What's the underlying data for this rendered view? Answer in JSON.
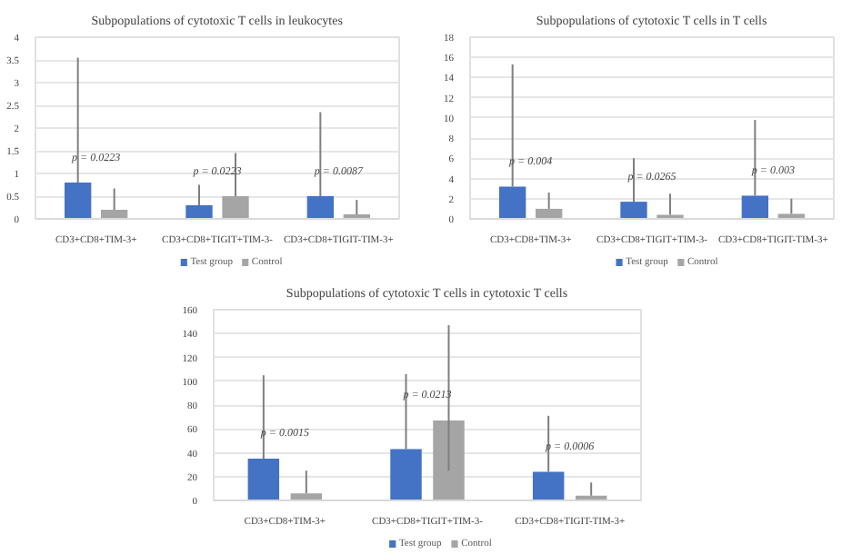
{
  "chart_data": [
    {
      "type": "bar",
      "title": "Subpopulations of cytotoxic T cells in leukocytes",
      "categories": [
        "CD3+CD8+TIM-3+",
        "CD3+CD8+TIGIT+TIM-3-",
        "CD3+CD8+TIGIT-TIM-3+"
      ],
      "series": [
        {
          "name": "Test group",
          "color": "#4472c4",
          "values": [
            0.8,
            0.3,
            0.5
          ],
          "errors": [
            [
              0.8,
              3.55
            ],
            [
              0.3,
              0.75
            ],
            [
              0.5,
              2.35
            ]
          ]
        },
        {
          "name": "Control",
          "color": "#a5a5a5",
          "values": [
            0.2,
            0.5,
            0.1
          ],
          "errors": [
            [
              0.2,
              0.67
            ],
            [
              0.5,
              1.45
            ],
            [
              0.1,
              0.42
            ]
          ]
        }
      ],
      "ylim": [
        0,
        4
      ],
      "yticks": [
        0,
        0.5,
        1,
        1.5,
        2,
        2.5,
        3,
        3.5,
        4
      ],
      "grid": "y",
      "legend": "bottom",
      "annotations": [
        "p = 0.0223",
        "p = 0.0223",
        "p = 0.0087"
      ]
    },
    {
      "type": "bar",
      "title": "Subpopulations of cytotoxic T cells in T cells",
      "categories": [
        "CD3+CD8+TIM-3+",
        "CD3+CD8+TIGIT+TIM-3-",
        "CD3+CD8+TIGIT-TIM-3+"
      ],
      "series": [
        {
          "name": "Test group",
          "color": "#4472c4",
          "values": [
            3.2,
            1.7,
            2.3
          ],
          "errors": [
            [
              3.2,
              15.3
            ],
            [
              1.7,
              6.0
            ],
            [
              2.3,
              9.8
            ]
          ]
        },
        {
          "name": "Control",
          "color": "#a5a5a5",
          "values": [
            1.0,
            0.4,
            0.5
          ],
          "errors": [
            [
              1.0,
              2.6
            ],
            [
              0.4,
              2.5
            ],
            [
              0.5,
              2.0
            ]
          ]
        }
      ],
      "ylim": [
        0,
        18
      ],
      "yticks": [
        0,
        2,
        4,
        6,
        8,
        10,
        12,
        14,
        16,
        18
      ],
      "grid": "y",
      "legend": "bottom",
      "annotations": [
        "p = 0.004",
        "p = 0.0265",
        "p = 0.003"
      ]
    },
    {
      "type": "bar",
      "title": "Subpopulations of cytotoxic T cells in cytotoxic T cells",
      "categories": [
        "CD3+CD8+TIM-3+",
        "CD3+CD8+TIGIT+TIM-3-",
        "CD3+CD8+TIGIT-TIM-3+"
      ],
      "series": [
        {
          "name": "Test group",
          "color": "#4472c4",
          "values": [
            35,
            43,
            24
          ],
          "errors": [
            [
              35,
              105
            ],
            [
              43,
              106
            ],
            [
              24,
              71
            ]
          ]
        },
        {
          "name": "Control",
          "color": "#a5a5a5",
          "values": [
            6,
            67,
            4
          ],
          "errors": [
            [
              6,
              25
            ],
            [
              25,
              147
            ],
            [
              4,
              15
            ]
          ]
        }
      ],
      "ylim": [
        0,
        160
      ],
      "yticks": [
        0,
        20,
        40,
        60,
        80,
        100,
        120,
        140,
        160
      ],
      "grid": "y",
      "legend": "bottom",
      "annotations": [
        "p = 0.0015",
        "p = 0.0213",
        "p = 0.0006"
      ]
    }
  ]
}
